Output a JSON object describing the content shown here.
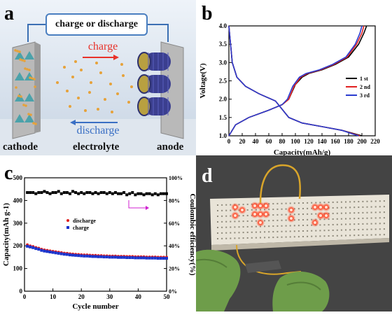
{
  "panels": {
    "a": {
      "letter": "a",
      "box_label": "charge or discharge",
      "charge_label": "charge",
      "discharge_label": "discharge",
      "cathode_label": "cathode",
      "electrolyte_label": "electrolyte",
      "anode_label": "anode",
      "colors": {
        "box_border": "#4a7fc0",
        "charge": "#e8322a",
        "discharge": "#3a6fc4",
        "wire": "#3b6fb3"
      }
    },
    "b": {
      "letter": "b"
    },
    "c": {
      "letter": "c"
    },
    "d": {
      "letter": "d"
    }
  },
  "chart_data": [
    {
      "panel": "b",
      "type": "line",
      "xlabel": "Capacity(mAh/g)",
      "ylabel": "Voltage(V)",
      "xlim": [
        0,
        220
      ],
      "ylim": [
        1.0,
        4.0
      ],
      "x_ticks": [
        "0",
        "20",
        "40",
        "60",
        "80",
        "100",
        "120",
        "140",
        "160",
        "180",
        "200",
        "220"
      ],
      "y_ticks": [
        "1.0",
        "1.5",
        "2.0",
        "2.5",
        "3.0",
        "3.5",
        "4.0"
      ],
      "legend": [
        "1 st",
        "2 nd",
        "3 rd"
      ],
      "legend_placement": "right",
      "series": [
        {
          "name": "1 st",
          "color": "#000000",
          "charge": [
            [
              0,
              1.0
            ],
            [
              10,
              1.3
            ],
            [
              30,
              1.5
            ],
            [
              60,
              1.7
            ],
            [
              80,
              1.85
            ],
            [
              90,
              2.0
            ],
            [
              100,
              2.4
            ],
            [
              110,
              2.6
            ],
            [
              120,
              2.7
            ],
            [
              140,
              2.8
            ],
            [
              160,
              2.95
            ],
            [
              180,
              3.15
            ],
            [
              195,
              3.5
            ],
            [
              203,
              3.8
            ],
            [
              207,
              4.0
            ]
          ],
          "discharge": [
            [
              0,
              4.0
            ],
            [
              2,
              3.6
            ],
            [
              5,
              3.0
            ],
            [
              12,
              2.6
            ],
            [
              25,
              2.35
            ],
            [
              45,
              2.15
            ],
            [
              70,
              1.95
            ],
            [
              90,
              1.5
            ],
            [
              110,
              1.35
            ],
            [
              140,
              1.25
            ],
            [
              170,
              1.15
            ],
            [
              190,
              1.05
            ],
            [
              200,
              1.0
            ]
          ]
        },
        {
          "name": "2 nd",
          "color": "#e02020",
          "charge": [
            [
              0,
              1.0
            ],
            [
              10,
              1.3
            ],
            [
              30,
              1.5
            ],
            [
              60,
              1.7
            ],
            [
              80,
              1.85
            ],
            [
              90,
              2.0
            ],
            [
              98,
              2.35
            ],
            [
              108,
              2.6
            ],
            [
              118,
              2.7
            ],
            [
              138,
              2.8
            ],
            [
              158,
              2.95
            ],
            [
              178,
              3.15
            ],
            [
              192,
              3.5
            ],
            [
              200,
              3.8
            ],
            [
              203,
              4.0
            ]
          ],
          "discharge": [
            [
              0,
              4.0
            ],
            [
              2,
              3.6
            ],
            [
              5,
              3.0
            ],
            [
              12,
              2.6
            ],
            [
              25,
              2.35
            ],
            [
              45,
              2.15
            ],
            [
              70,
              1.95
            ],
            [
              90,
              1.5
            ],
            [
              110,
              1.35
            ],
            [
              140,
              1.25
            ],
            [
              170,
              1.15
            ],
            [
              188,
              1.05
            ],
            [
              197,
              1.0
            ]
          ]
        },
        {
          "name": "3 rd",
          "color": "#2a3ccf",
          "charge": [
            [
              0,
              1.0
            ],
            [
              10,
              1.3
            ],
            [
              30,
              1.5
            ],
            [
              60,
              1.7
            ],
            [
              80,
              1.85
            ],
            [
              88,
              2.0
            ],
            [
              96,
              2.35
            ],
            [
              106,
              2.6
            ],
            [
              116,
              2.7
            ],
            [
              136,
              2.8
            ],
            [
              156,
              2.95
            ],
            [
              176,
              3.15
            ],
            [
              190,
              3.5
            ],
            [
              197,
              3.8
            ],
            [
              200,
              4.0
            ]
          ],
          "discharge": [
            [
              0,
              4.0
            ],
            [
              2,
              3.6
            ],
            [
              5,
              3.0
            ],
            [
              12,
              2.6
            ],
            [
              25,
              2.35
            ],
            [
              45,
              2.15
            ],
            [
              70,
              1.95
            ],
            [
              90,
              1.5
            ],
            [
              110,
              1.35
            ],
            [
              140,
              1.25
            ],
            [
              170,
              1.15
            ],
            [
              186,
              1.05
            ],
            [
              195,
              1.0
            ]
          ]
        }
      ]
    },
    {
      "panel": "c",
      "type": "scatter",
      "xlabel": "Cycle number",
      "ylabel": "Capacity(mAh g-1)",
      "ylabel_right": "Coulombic efficiency(%)",
      "xlim": [
        0,
        50
      ],
      "ylim": [
        0,
        500
      ],
      "ylim_right": [
        0,
        100
      ],
      "x_ticks": [
        "0",
        "10",
        "20",
        "30",
        "40",
        "50"
      ],
      "y_ticks": [
        "0",
        "100",
        "200",
        "300",
        "400",
        "500"
      ],
      "y_ticks_right": [
        "0%",
        "20%",
        "40%",
        "60%",
        "80%",
        "100%"
      ],
      "legend": [
        "discharge",
        "charge"
      ],
      "legend_placement": "center-left",
      "series": [
        {
          "name": "discharge",
          "color": "#e02020",
          "marker": "circle",
          "x": [
            1,
            2,
            3,
            4,
            5,
            6,
            7,
            8,
            9,
            10,
            11,
            12,
            13,
            14,
            15,
            16,
            17,
            18,
            19,
            20,
            21,
            22,
            23,
            24,
            25,
            26,
            27,
            28,
            29,
            30,
            31,
            32,
            33,
            34,
            35,
            36,
            37,
            38,
            39,
            40,
            41,
            42,
            43,
            44,
            45,
            46,
            47,
            48,
            49,
            50
          ],
          "values": [
            205,
            200,
            197,
            193,
            190,
            185,
            182,
            180,
            178,
            176,
            174,
            172,
            170,
            168,
            167,
            165,
            164,
            163,
            162,
            161,
            160,
            160,
            159,
            158,
            158,
            157,
            157,
            156,
            156,
            155,
            155,
            155,
            154,
            154,
            154,
            153,
            153,
            153,
            152,
            152,
            152,
            152,
            151,
            151,
            151,
            151,
            150,
            150,
            150,
            150
          ]
        },
        {
          "name": "charge",
          "color": "#1a33cc",
          "marker": "square",
          "x": [
            1,
            2,
            3,
            4,
            5,
            6,
            7,
            8,
            9,
            10,
            11,
            12,
            13,
            14,
            15,
            16,
            17,
            18,
            19,
            20,
            21,
            22,
            23,
            24,
            25,
            26,
            27,
            28,
            29,
            30,
            31,
            32,
            33,
            34,
            35,
            36,
            37,
            38,
            39,
            40,
            41,
            42,
            43,
            44,
            45,
            46,
            47,
            48,
            49,
            50
          ],
          "values": [
            198,
            195,
            192,
            188,
            185,
            180,
            177,
            175,
            173,
            171,
            169,
            167,
            165,
            163,
            162,
            160,
            159,
            158,
            157,
            156,
            155,
            155,
            154,
            153,
            153,
            152,
            152,
            151,
            151,
            150,
            150,
            150,
            149,
            149,
            149,
            148,
            148,
            148,
            147,
            147,
            147,
            147,
            146,
            146,
            146,
            146,
            145,
            145,
            145,
            145
          ]
        },
        {
          "name": "",
          "color": "#000000",
          "marker": "square",
          "axis": "right",
          "x": [
            1,
            2,
            3,
            4,
            5,
            6,
            7,
            8,
            9,
            10,
            11,
            12,
            13,
            14,
            15,
            16,
            17,
            18,
            19,
            20,
            21,
            22,
            23,
            24,
            25,
            26,
            27,
            28,
            29,
            30,
            31,
            32,
            33,
            34,
            35,
            36,
            37,
            38,
            39,
            40,
            41,
            42,
            43,
            44,
            45,
            46,
            47,
            48,
            49,
            50
          ],
          "values": [
            87,
            87,
            87,
            86,
            87,
            87,
            88,
            87,
            86,
            87,
            87,
            88,
            86,
            87,
            87,
            86,
            88,
            87,
            86,
            87,
            86,
            87,
            87,
            86,
            87,
            86,
            87,
            87,
            86,
            87,
            86,
            87,
            86,
            86,
            87,
            85,
            86,
            87,
            85,
            86,
            86,
            85,
            86,
            86,
            85,
            86,
            85,
            86,
            86,
            86
          ]
        }
      ]
    }
  ]
}
